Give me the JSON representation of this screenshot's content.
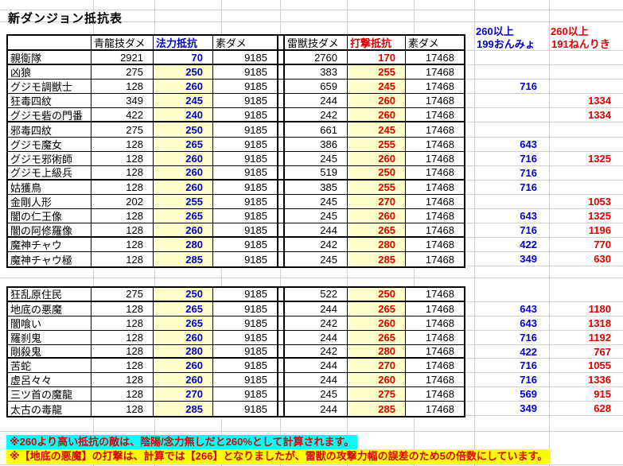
{
  "title": "新ダンジョン抵抗表",
  "columns": {
    "name": "",
    "blue_skill": "青龍技ダメ",
    "magic_res": "法力抵抗",
    "base1": "素ダメ",
    "thunder_skill": "雷獣技ダメ",
    "strike_res": "打撃抵抗",
    "base2": "素ダメ"
  },
  "extra_columns": [
    {
      "line1": "260以上",
      "line2": "199おんみょ"
    },
    {
      "line1": "260以上",
      "line2": "191ねんりき"
    }
  ],
  "colors": {
    "blue": "#0000cc",
    "red": "#dd0000",
    "highlight": "#ffffcc",
    "gridline": "#d0d0d0",
    "note1_bg": "#00ffff",
    "note2_bg": "#ffff00"
  },
  "tables": [
    {
      "rows": [
        {
          "name": "親衛隊",
          "blue": "2921",
          "magic": "70",
          "base1": "9185",
          "thunder": "2760",
          "strike": "170",
          "base2": "17468",
          "onmyo": "",
          "nenriki": "",
          "hl": false,
          "thick": true
        },
        {
          "name": "凶狼",
          "blue": "275",
          "magic": "250",
          "base1": "9185",
          "thunder": "383",
          "strike": "255",
          "base2": "17468",
          "onmyo": "",
          "nenriki": ""
        },
        {
          "name": "グジモ調獣士",
          "blue": "128",
          "magic": "260",
          "base1": "9185",
          "thunder": "659",
          "strike": "245",
          "base2": "17468",
          "onmyo": "716",
          "nenriki": ""
        },
        {
          "name": "狂毒四紋",
          "blue": "349",
          "magic": "245",
          "base1": "9185",
          "thunder": "244",
          "strike": "260",
          "base2": "17468",
          "onmyo": "",
          "nenriki": "1334"
        },
        {
          "name": "グジモ砦の門番",
          "blue": "422",
          "magic": "240",
          "base1": "9185",
          "thunder": "242",
          "strike": "260",
          "base2": "17468",
          "onmyo": "",
          "nenriki": "1334",
          "thick": true
        },
        {
          "name": "邪毒四紋",
          "blue": "275",
          "magic": "250",
          "base1": "9185",
          "thunder": "661",
          "strike": "245",
          "base2": "17468",
          "onmyo": "",
          "nenriki": ""
        },
        {
          "name": "グジモ魔女",
          "blue": "128",
          "magic": "265",
          "base1": "9185",
          "thunder": "386",
          "strike": "255",
          "base2": "17468",
          "onmyo": "643",
          "nenriki": ""
        },
        {
          "name": "グジモ邪術師",
          "blue": "128",
          "magic": "260",
          "base1": "9185",
          "thunder": "245",
          "strike": "260",
          "base2": "17468",
          "onmyo": "716",
          "nenriki": "1325"
        },
        {
          "name": "グジモ上級兵",
          "blue": "128",
          "magic": "260",
          "base1": "9185",
          "thunder": "519",
          "strike": "250",
          "base2": "17468",
          "onmyo": "716",
          "nenriki": "",
          "thick": true
        },
        {
          "name": "姑獲鳥",
          "blue": "128",
          "magic": "260",
          "base1": "9185",
          "thunder": "385",
          "strike": "255",
          "base2": "17468",
          "onmyo": "716",
          "nenriki": ""
        },
        {
          "name": "金剛人形",
          "blue": "202",
          "magic": "255",
          "base1": "9185",
          "thunder": "245",
          "strike": "270",
          "base2": "17468",
          "onmyo": "",
          "nenriki": "1053"
        },
        {
          "name": "闇の仁王像",
          "blue": "128",
          "magic": "265",
          "base1": "9185",
          "thunder": "245",
          "strike": "260",
          "base2": "17468",
          "onmyo": "643",
          "nenriki": "1325"
        },
        {
          "name": "闇の阿修羅像",
          "blue": "128",
          "magic": "260",
          "base1": "9185",
          "thunder": "244",
          "strike": "265",
          "base2": "17468",
          "onmyo": "716",
          "nenriki": "1196",
          "thick": true
        },
        {
          "name": "魔神チャウ",
          "blue": "128",
          "magic": "280",
          "base1": "9185",
          "thunder": "242",
          "strike": "280",
          "base2": "17468",
          "onmyo": "422",
          "nenriki": "770"
        },
        {
          "name": "魔神チャウ極",
          "blue": "128",
          "magic": "285",
          "base1": "9185",
          "thunder": "245",
          "strike": "285",
          "base2": "17468",
          "onmyo": "349",
          "nenriki": "630"
        }
      ]
    },
    {
      "rows": [
        {
          "name": "狂乱原住民",
          "blue": "275",
          "magic": "250",
          "base1": "9185",
          "thunder": "522",
          "strike": "250",
          "base2": "17468",
          "onmyo": "",
          "nenriki": "",
          "thick": true
        },
        {
          "name": "地底の悪魔",
          "blue": "128",
          "magic": "265",
          "base1": "9185",
          "thunder": "244",
          "strike": "265",
          "base2": "17468",
          "onmyo": "643",
          "nenriki": "1180"
        },
        {
          "name": "闇喰い",
          "blue": "128",
          "magic": "265",
          "base1": "9185",
          "thunder": "242",
          "strike": "260",
          "base2": "17468",
          "onmyo": "643",
          "nenriki": "1318"
        },
        {
          "name": "羅刹鬼",
          "blue": "128",
          "magic": "260",
          "base1": "9185",
          "thunder": "244",
          "strike": "265",
          "base2": "17468",
          "onmyo": "716",
          "nenriki": "1192"
        },
        {
          "name": "剛殺鬼",
          "blue": "128",
          "magic": "280",
          "base1": "9185",
          "thunder": "242",
          "strike": "280",
          "base2": "17468",
          "onmyo": "422",
          "nenriki": "767",
          "thick": true
        },
        {
          "name": "苦蛇",
          "blue": "128",
          "magic": "260",
          "base1": "9185",
          "thunder": "244",
          "strike": "270",
          "base2": "17468",
          "onmyo": "716",
          "nenriki": "1055"
        },
        {
          "name": "虚呂々々",
          "blue": "128",
          "magic": "260",
          "base1": "9185",
          "thunder": "244",
          "strike": "260",
          "base2": "17468",
          "onmyo": "716",
          "nenriki": "1336"
        },
        {
          "name": "三ツ首の魔龍",
          "blue": "128",
          "magic": "270",
          "base1": "9185",
          "thunder": "245",
          "strike": "275",
          "base2": "17468",
          "onmyo": "569",
          "nenriki": "915"
        },
        {
          "name": "太古の毒龍",
          "blue": "128",
          "magic": "285",
          "base1": "9185",
          "thunder": "244",
          "strike": "285",
          "base2": "17468",
          "onmyo": "349",
          "nenriki": "628"
        }
      ]
    }
  ],
  "notes": [
    {
      "text": "※260より高い抵抗の敵は、陰陽/念力無しだと260%として計算されます。"
    },
    {
      "text": "※【地底の悪魔】の打撃は、計算では【266】となりましたが、雷獣の攻撃力幅の誤差のため5の倍数にしています。"
    }
  ]
}
